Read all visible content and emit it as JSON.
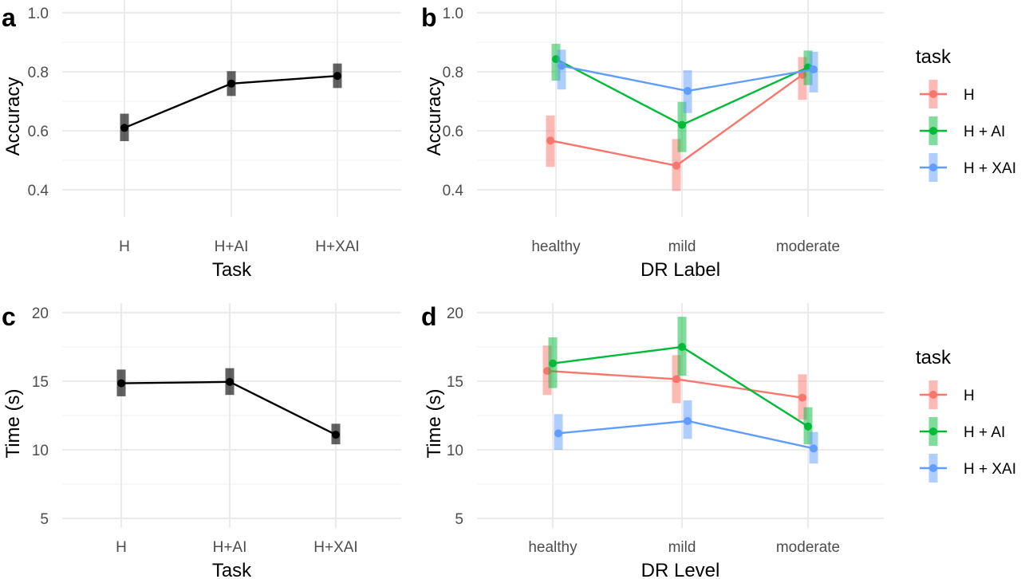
{
  "chart_data": [
    {
      "panel": "a",
      "type": "line",
      "xlabel": "Task",
      "ylabel": "Accuracy",
      "ylim": [
        0.32,
        1.0
      ],
      "yticks": [
        0.4,
        0.6,
        0.8,
        1.0
      ],
      "yticklabels": [
        "0.4",
        "0.6",
        "0.8",
        "1.0"
      ],
      "categories": [
        "H",
        "H+AI",
        "H+XAI"
      ],
      "series": [
        {
          "color": "#000000",
          "values": [
            0.61,
            0.76,
            0.786
          ],
          "lower": [
            0.565,
            0.718,
            0.745
          ],
          "upper": [
            0.658,
            0.802,
            0.828
          ]
        }
      ],
      "grid": true
    },
    {
      "panel": "b",
      "type": "line",
      "xlabel": "DR Label",
      "ylabel": "Accuracy",
      "ylim": [
        0.32,
        1.0
      ],
      "yticks": [
        0.4,
        0.6,
        0.8,
        1.0
      ],
      "yticklabels": [
        "0.4",
        "0.6",
        "0.8",
        "1.0"
      ],
      "categories": [
        "healthy",
        "mild",
        "moderate"
      ],
      "legend": {
        "title": "task",
        "labels": [
          "H",
          "H + AI",
          "H + XAI"
        ]
      },
      "series": [
        {
          "name": "H",
          "color": "#F8766D",
          "values": [
            0.567,
            0.482,
            0.79
          ],
          "lower": [
            0.478,
            0.396,
            0.705
          ],
          "upper": [
            0.652,
            0.572,
            0.85
          ]
        },
        {
          "name": "H + AI",
          "color": "#00BA38",
          "values": [
            0.843,
            0.62,
            0.815
          ],
          "lower": [
            0.77,
            0.528,
            0.755
          ],
          "upper": [
            0.895,
            0.698,
            0.872
          ]
        },
        {
          "name": "H + XAI",
          "color": "#619CFF",
          "values": [
            0.82,
            0.735,
            0.808
          ],
          "lower": [
            0.74,
            0.66,
            0.73
          ],
          "upper": [
            0.875,
            0.805,
            0.868
          ]
        }
      ],
      "grid": true,
      "legend_position": "right"
    },
    {
      "panel": "c",
      "type": "line",
      "xlabel": "Task",
      "ylabel": "Time (s)",
      "ylim": [
        3.5,
        21.0
      ],
      "yticks": [
        5,
        10,
        15,
        20
      ],
      "yticklabels": [
        "5",
        "10",
        "15",
        "20"
      ],
      "categories": [
        "H",
        "H+AI",
        "H+XAI"
      ],
      "series": [
        {
          "color": "#000000",
          "values": [
            14.85,
            14.95,
            11.1
          ],
          "lower": [
            13.9,
            14.0,
            10.4
          ],
          "upper": [
            15.85,
            15.95,
            11.9
          ]
        }
      ],
      "grid": true
    },
    {
      "panel": "d",
      "type": "line",
      "xlabel": "DR Level",
      "ylabel": "Time (s)",
      "ylim": [
        3.5,
        21.0
      ],
      "yticks": [
        5,
        10,
        15,
        20
      ],
      "yticklabels": [
        "5",
        "10",
        "15",
        "20"
      ],
      "categories": [
        "healthy",
        "mild",
        "moderate"
      ],
      "legend": {
        "title": "task",
        "labels": [
          "H",
          "H + AI",
          "H + XAI"
        ]
      },
      "series": [
        {
          "name": "H",
          "color": "#F8766D",
          "values": [
            15.75,
            15.15,
            13.8
          ],
          "lower": [
            14.0,
            13.4,
            12.2
          ],
          "upper": [
            17.6,
            16.9,
            15.5
          ]
        },
        {
          "name": "H + AI",
          "color": "#00BA38",
          "values": [
            16.3,
            17.5,
            11.7
          ],
          "lower": [
            14.5,
            15.4,
            10.4
          ],
          "upper": [
            18.2,
            19.7,
            13.1
          ]
        },
        {
          "name": "H + XAI",
          "color": "#619CFF",
          "values": [
            11.2,
            12.1,
            10.1
          ],
          "lower": [
            10.0,
            10.8,
            9.0
          ],
          "upper": [
            12.6,
            13.6,
            11.3
          ]
        }
      ],
      "grid": true,
      "legend_position": "right"
    }
  ]
}
